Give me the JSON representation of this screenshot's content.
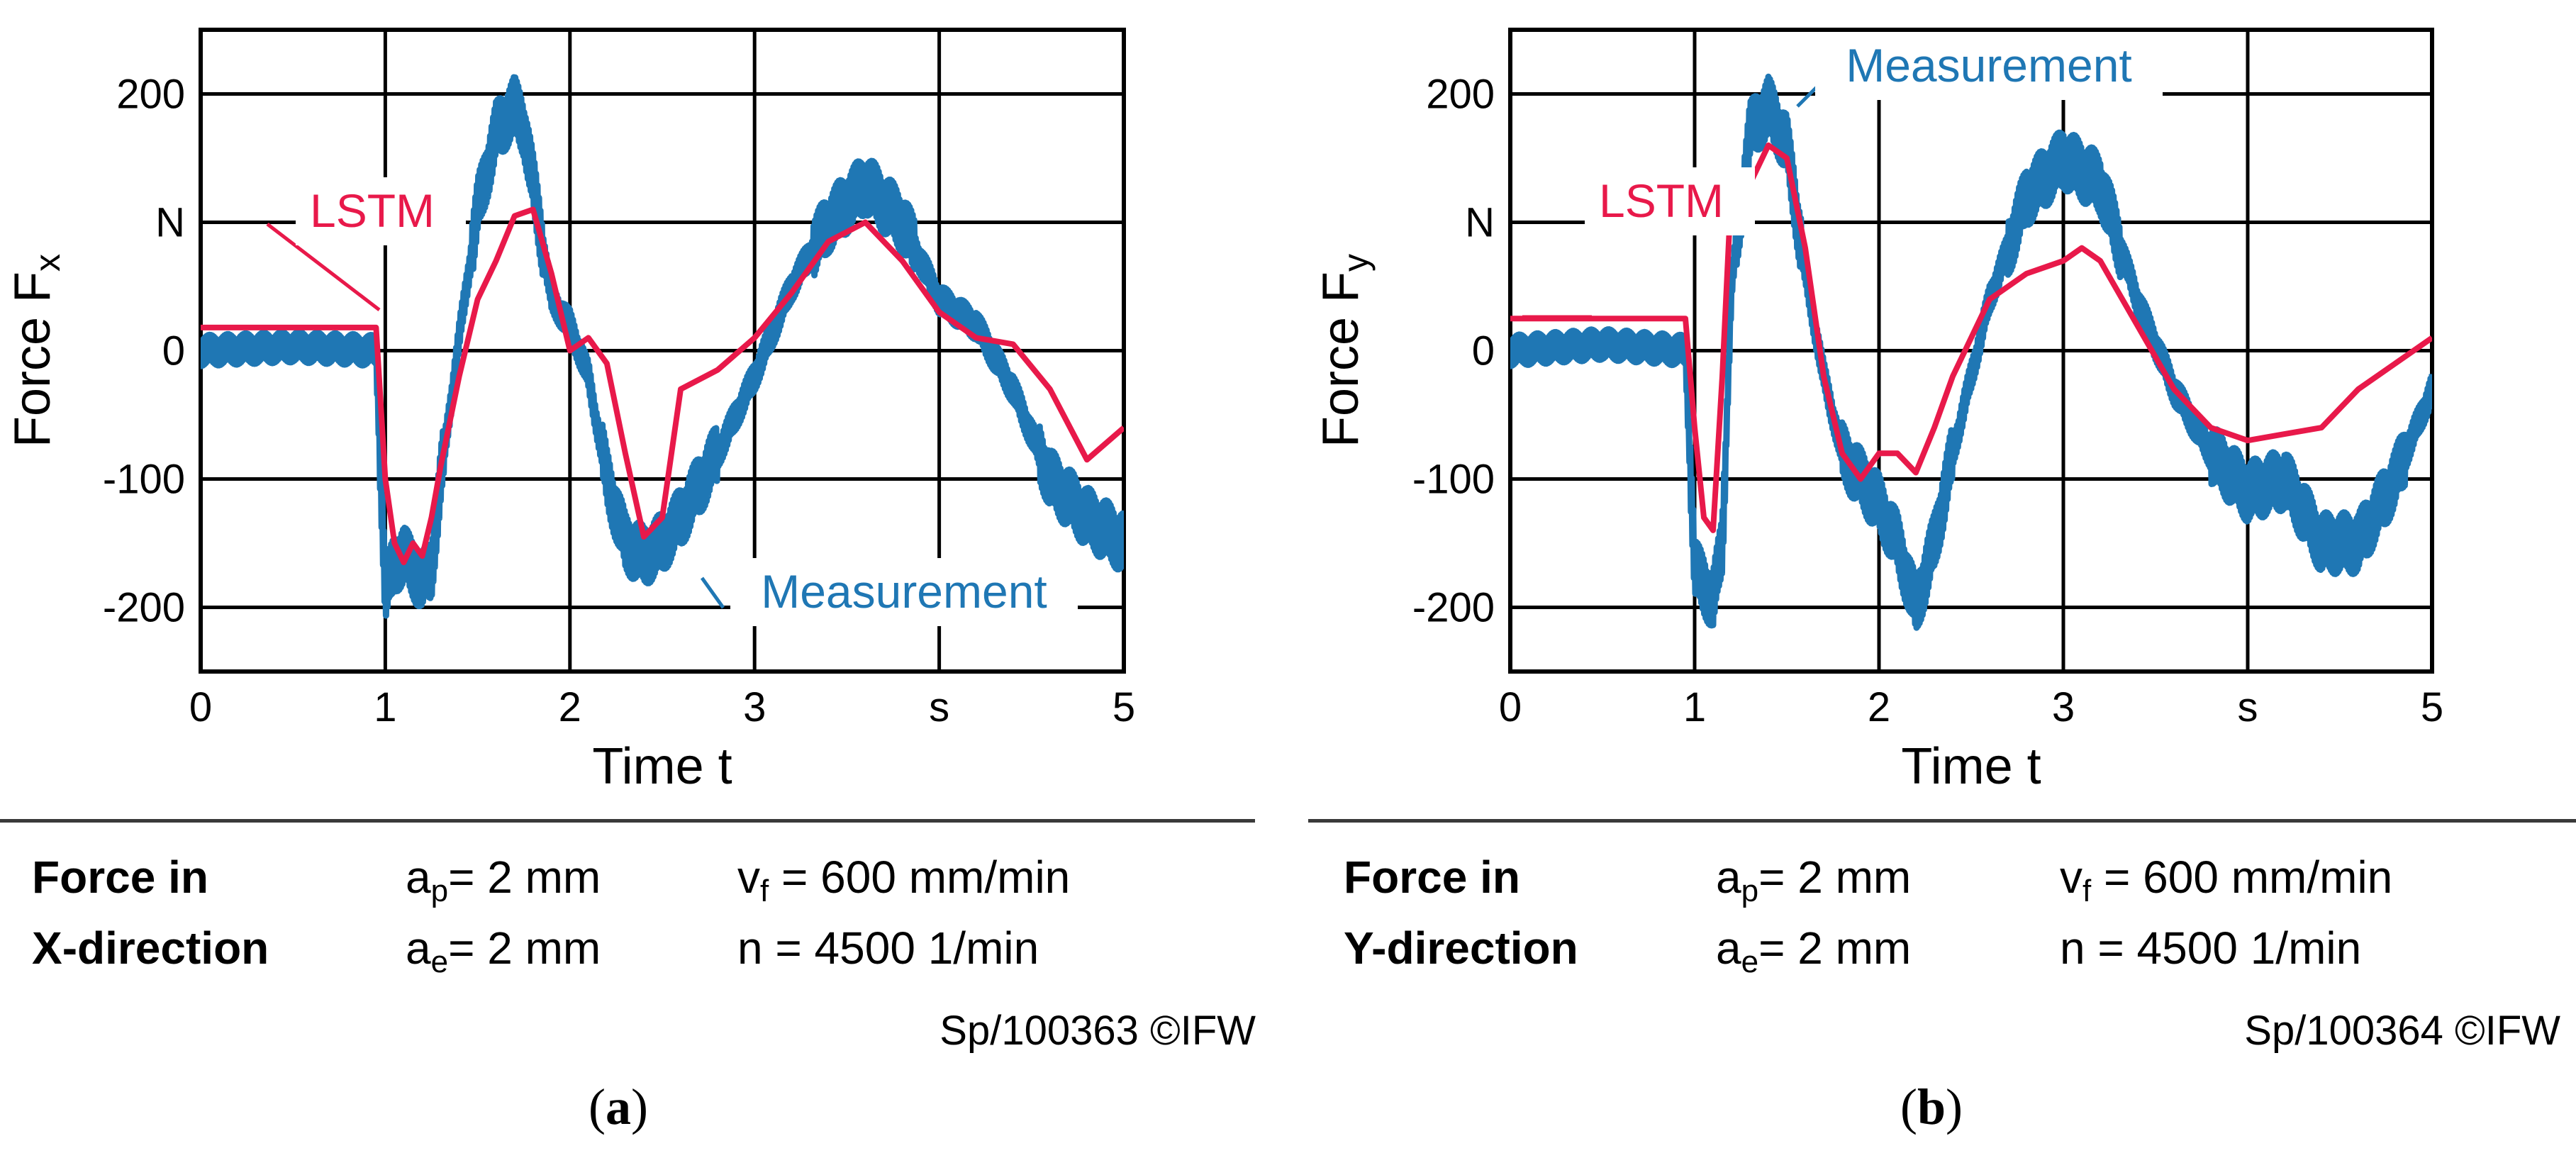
{
  "colors": {
    "measurement": "#1f77b4",
    "lstm": "#e8194a",
    "grid": "#000000"
  },
  "charts": [
    {
      "id": "a",
      "caption_letter": "a",
      "ylabel_main": "Force F",
      "ylabel_sub": "x",
      "xlabel": "Time t",
      "series_labels": {
        "lstm": "LSTM",
        "measurement": "Measurement"
      },
      "x_ticks": [
        "0",
        "1",
        "2",
        "3",
        "s",
        "5"
      ],
      "y_ticks": [
        "200",
        "N",
        "0",
        "-100",
        "-200"
      ],
      "footer": {
        "title_line1": "Force in",
        "title_line2": "X-direction",
        "ap_label": "a",
        "ap_sub": "p",
        "ap_value": "= 2 mm",
        "ae_label": "a",
        "ae_sub": "e",
        "ae_value": "= 2 mm",
        "vf_label": "v",
        "vf_sub": "f",
        "vf_value": " = 600 mm/min",
        "n_label": "n",
        "n_value": " = 4500 1/min",
        "code": "Sp/100363 ©IFW"
      }
    },
    {
      "id": "b",
      "caption_letter": "b",
      "ylabel_main": "Force F",
      "ylabel_sub": "y",
      "xlabel": "Time t",
      "series_labels": {
        "lstm": "LSTM",
        "measurement": "Measurement"
      },
      "x_ticks": [
        "0",
        "1",
        "2",
        "3",
        "s",
        "5"
      ],
      "y_ticks": [
        "200",
        "N",
        "0",
        "-100",
        "-200"
      ],
      "footer": {
        "title_line1": "Force in",
        "title_line2": "Y-direction",
        "ap_label": "a",
        "ap_sub": "p",
        "ap_value": "= 2 mm",
        "ae_label": "a",
        "ae_sub": "e",
        "ae_value": "= 2 mm",
        "vf_label": "v",
        "vf_sub": "f",
        "vf_value": " = 600 mm/min",
        "n_label": "n",
        "n_value": " = 4500 1/min",
        "code": "Sp/100364 ©IFW"
      }
    }
  ],
  "chart_data": [
    {
      "type": "line",
      "title": "",
      "xlabel": "Time t (s)",
      "ylabel": "Force Fx (N)",
      "xlim": [
        0,
        5
      ],
      "ylim": [
        -250,
        250
      ],
      "grid": true,
      "series": [
        {
          "name": "Measurement",
          "x": [
            0,
            0.5,
            0.95,
            1.0,
            1.05,
            1.1,
            1.2,
            1.25,
            1.3,
            1.4,
            1.5,
            1.6,
            1.7,
            1.75,
            1.8,
            1.9,
            2.0,
            2.1,
            2.2,
            2.3,
            2.4,
            2.5,
            2.6,
            2.8,
            3.0,
            3.2,
            3.4,
            3.6,
            3.8,
            4.0,
            4.2,
            4.4,
            4.6,
            4.8,
            5.0
          ],
          "y": [
            0,
            3,
            0,
            -190,
            -165,
            -160,
            -180,
            -170,
            -100,
            10,
            110,
            170,
            190,
            175,
            130,
            40,
            20,
            -20,
            -100,
            -150,
            -160,
            -150,
            -130,
            -80,
            -20,
            50,
            100,
            130,
            100,
            40,
            20,
            -30,
            -100,
            -130,
            -150
          ],
          "amplitude": 15
        },
        {
          "name": "LSTM",
          "x": [
            0,
            0.95,
            1.0,
            1.05,
            1.1,
            1.15,
            1.2,
            1.25,
            1.3,
            1.4,
            1.5,
            1.6,
            1.7,
            1.8,
            1.9,
            2.0,
            2.1,
            2.2,
            2.3,
            2.4,
            2.5,
            2.6,
            2.8,
            3.0,
            3.2,
            3.4,
            3.6,
            3.8,
            4.0,
            4.2,
            4.4,
            4.6,
            4.8,
            5.0
          ],
          "y": [
            18,
            18,
            -100,
            -150,
            -165,
            -150,
            -160,
            -130,
            -90,
            -20,
            40,
            70,
            105,
            110,
            60,
            0,
            10,
            -10,
            -80,
            -145,
            -130,
            -30,
            -15,
            10,
            45,
            85,
            100,
            70,
            30,
            10,
            5,
            -30,
            -85,
            -60
          ]
        }
      ]
    },
    {
      "type": "line",
      "title": "",
      "xlabel": "Time t (s)",
      "ylabel": "Force Fy (N)",
      "xlim": [
        0,
        5
      ],
      "ylim": [
        -250,
        250
      ],
      "grid": true,
      "series": [
        {
          "name": "Measurement",
          "x": [
            0,
            0.5,
            0.95,
            1.0,
            1.1,
            1.15,
            1.2,
            1.3,
            1.4,
            1.5,
            1.6,
            1.7,
            1.8,
            1.9,
            2.0,
            2.1,
            2.2,
            2.3,
            2.4,
            2.6,
            2.8,
            3.0,
            3.2,
            3.4,
            3.6,
            3.8,
            4.0,
            4.2,
            4.4,
            4.6,
            4.8,
            5.0
          ],
          "y": [
            0,
            5,
            0,
            -170,
            -195,
            -150,
            50,
            170,
            190,
            160,
            60,
            -20,
            -80,
            -100,
            -120,
            -150,
            -200,
            -150,
            -80,
            40,
            120,
            150,
            130,
            40,
            -30,
            -80,
            -110,
            -100,
            -150,
            -150,
            -100,
            -30
          ],
          "amplitude": 15
        },
        {
          "name": "LSTM",
          "x": [
            0,
            0.95,
            1.0,
            1.05,
            1.1,
            1.15,
            1.2,
            1.3,
            1.4,
            1.5,
            1.6,
            1.7,
            1.8,
            1.9,
            2.0,
            2.1,
            2.2,
            2.3,
            2.4,
            2.6,
            2.8,
            3.0,
            3.1,
            3.2,
            3.4,
            3.6,
            3.8,
            4.0,
            4.2,
            4.4,
            4.6,
            4.8,
            5.0
          ],
          "y": [
            25,
            25,
            -60,
            -130,
            -140,
            -20,
            130,
            130,
            160,
            150,
            80,
            -20,
            -80,
            -100,
            -80,
            -80,
            -95,
            -60,
            -20,
            40,
            60,
            70,
            80,
            70,
            20,
            -30,
            -60,
            -70,
            -65,
            -60,
            -30,
            -10,
            10
          ]
        }
      ]
    }
  ]
}
